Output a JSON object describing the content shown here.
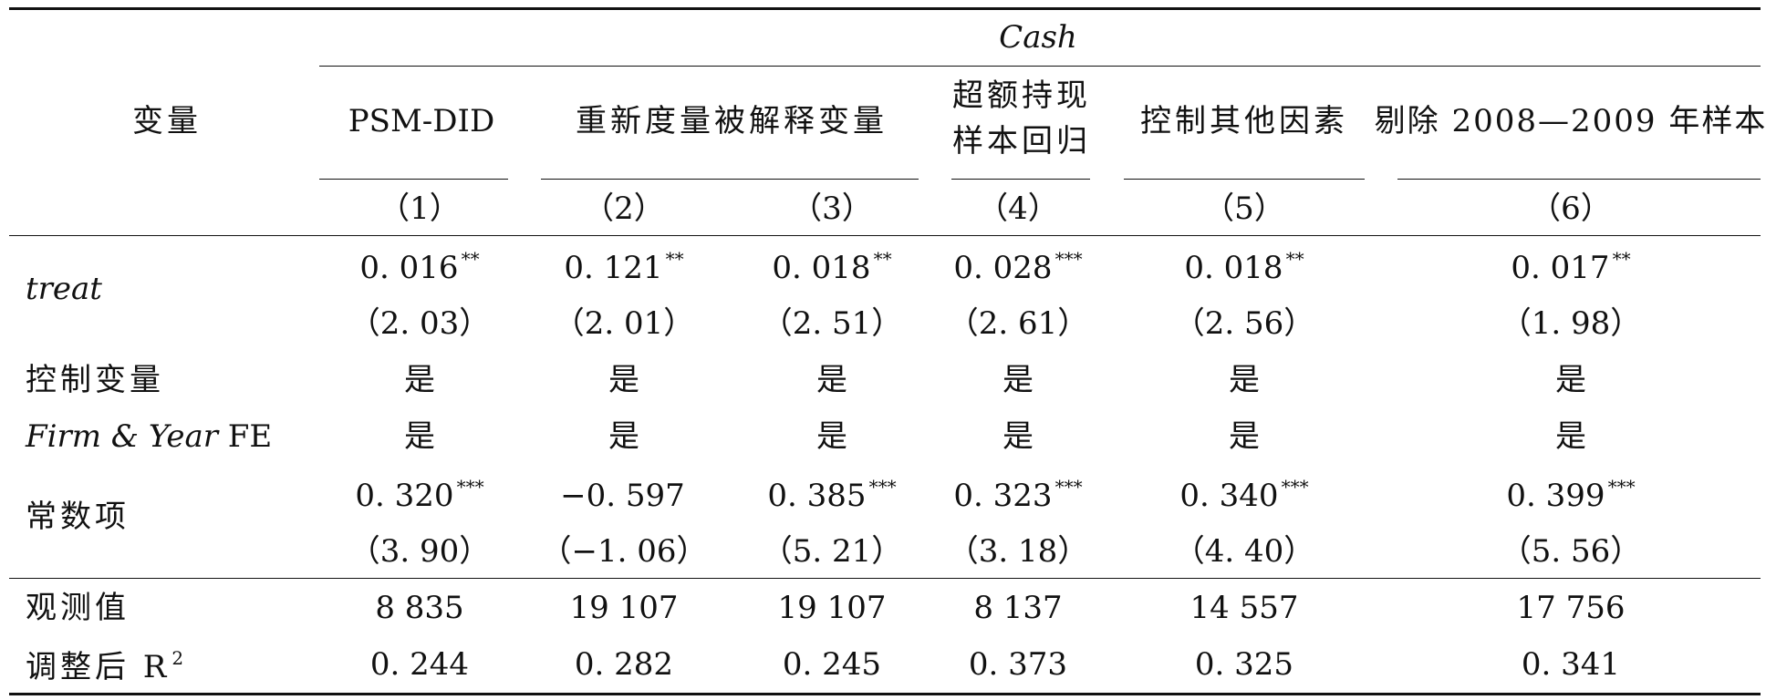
{
  "table": {
    "header": {
      "dependent_var": "Cash",
      "var_col_label": "变量",
      "groups": [
        {
          "label": "PSM-DID"
        },
        {
          "label": "重新度量被解释变量"
        },
        {
          "label_line1": "超额持现",
          "label_line2": "样本回归"
        },
        {
          "label": "控制其他因素"
        },
        {
          "label": "剔除 2008—2009 年样本"
        }
      ],
      "column_numbers": [
        "（1）",
        "（2）",
        "（3）",
        "（4）",
        "（5）",
        "（6）"
      ]
    },
    "rows": {
      "treat": {
        "label": "treat",
        "coef": [
          "0. 016",
          "0. 121",
          "0. 018",
          "0. 028",
          "0. 018",
          "0. 017"
        ],
        "stars": [
          "**",
          "**",
          "**",
          "***",
          "**",
          "**"
        ],
        "tstat": [
          "（2. 03）",
          "（2. 01）",
          "（2. 51）",
          "（2. 61）",
          "（2. 56）",
          "（1. 98）"
        ]
      },
      "controls": {
        "label": "控制变量",
        "values": [
          "是",
          "是",
          "是",
          "是",
          "是",
          "是"
        ]
      },
      "fe": {
        "label_italic": "Firm & Year",
        "label_rest": "FE",
        "values": [
          "是",
          "是",
          "是",
          "是",
          "是",
          "是"
        ]
      },
      "constant": {
        "label": "常数项",
        "coef": [
          "0. 320",
          "−0. 597",
          "0. 385",
          "0. 323",
          "0. 340",
          "0. 399"
        ],
        "stars": [
          "***",
          "",
          "***",
          "***",
          "***",
          "***"
        ],
        "tstat": [
          "（3. 90）",
          "（−1. 06）",
          "（5. 21）",
          "（3. 18）",
          "（4. 40）",
          "（5. 56）"
        ]
      },
      "observations": {
        "label": "观测值",
        "values": [
          "8 835",
          "19 107",
          "19 107",
          "8 137",
          "14 557",
          "17 756"
        ]
      },
      "adj_r2": {
        "label": "调整后 R",
        "label_sup": "2",
        "values": [
          "0. 244",
          "0. 282",
          "0. 245",
          "0. 373",
          "0. 325",
          "0. 341"
        ]
      }
    }
  }
}
